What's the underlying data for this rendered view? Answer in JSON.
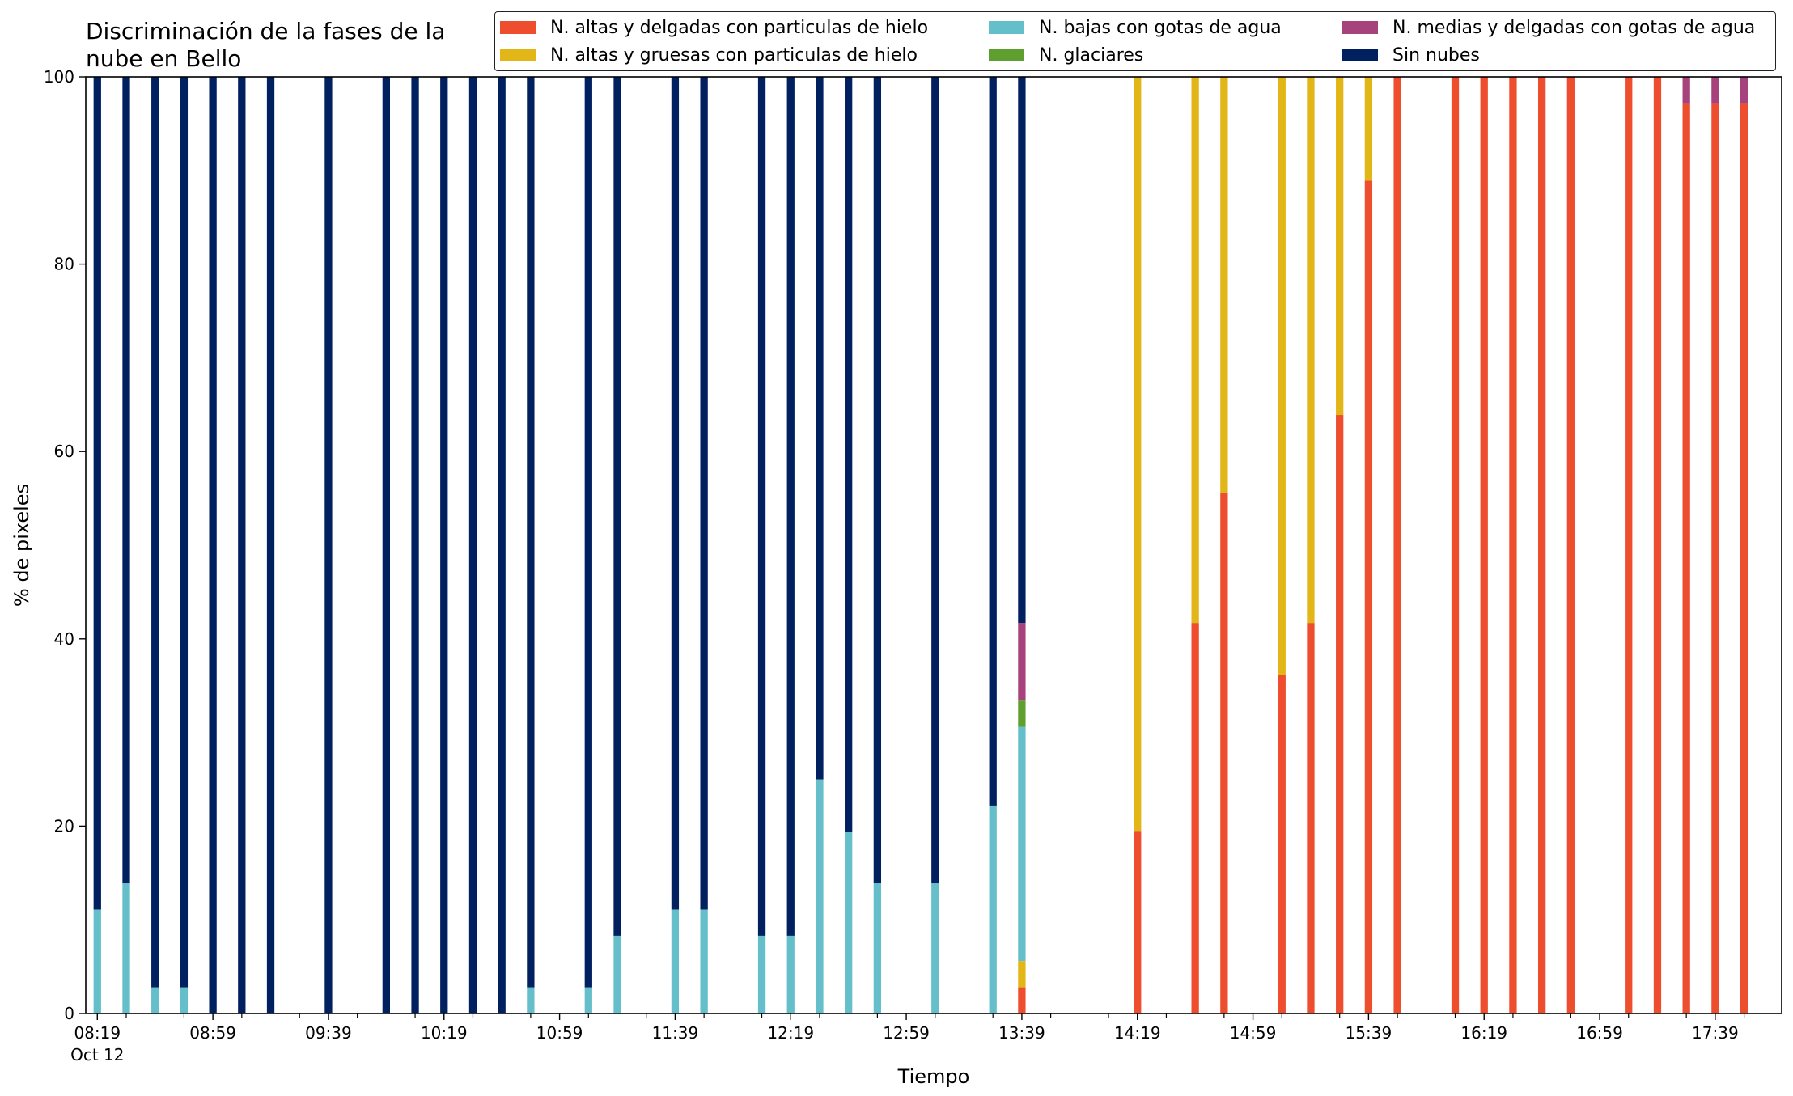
{
  "chart_data": {
    "type": "bar",
    "stacked": true,
    "title": "Discriminación de la fases de la\nnube en Bello",
    "xlabel": "Tiempo",
    "ylabel": "% de pixeles",
    "ylim": [
      0,
      100
    ],
    "yticks": [
      "0",
      "20",
      "40",
      "60",
      "80",
      "100"
    ],
    "xticks": [
      "08:19\nOct 12",
      "08:59",
      "09:39",
      "10:19",
      "10:59",
      "11:39",
      "12:19",
      "12:59",
      "13:39",
      "14:19",
      "14:59",
      "15:39",
      "16:19",
      "16:59",
      "17:39"
    ],
    "xtick_minutes": [
      499,
      539,
      579,
      619,
      659,
      699,
      739,
      779,
      819,
      859,
      899,
      939,
      979,
      1019,
      1059
    ],
    "xlim_minutes": [
      495,
      1082
    ],
    "bar_width_minutes": 5,
    "legend_position": "top-right",
    "grid": false,
    "colors": [
      "#ee4d2e",
      "#e2b616",
      "#65bfca",
      "#5f9f30",
      "#a6427c",
      "#002060"
    ],
    "categories": [
      "08:19",
      "08:29",
      "08:39",
      "08:49",
      "08:59",
      "09:09",
      "09:19",
      "09:29",
      "09:39",
      "09:49",
      "09:59",
      "10:09",
      "10:19",
      "10:29",
      "10:39",
      "10:49",
      "10:59",
      "11:09",
      "11:19",
      "11:29",
      "11:39",
      "11:49",
      "11:59",
      "12:09",
      "12:19",
      "12:29",
      "12:39",
      "12:49",
      "12:59",
      "13:09",
      "13:19",
      "13:29",
      "13:39",
      "13:49",
      "13:59",
      "14:09",
      "14:19",
      "14:29",
      "14:39",
      "14:49",
      "14:59",
      "15:09",
      "15:19",
      "15:29",
      "15:39",
      "15:49",
      "15:59",
      "16:09",
      "16:19",
      "16:29",
      "16:39",
      "16:49",
      "16:59",
      "17:09",
      "17:19",
      "17:29",
      "17:39",
      "17:49",
      "17:59"
    ],
    "series": [
      {
        "name": "N. altas y delgadas con particulas de hielo",
        "values": [
          0,
          0,
          0,
          0,
          0,
          0,
          0,
          0,
          0,
          0,
          0,
          0,
          0,
          0,
          0,
          0,
          0,
          0,
          0,
          0,
          0,
          0,
          0,
          0,
          0,
          0,
          0,
          0,
          0,
          0,
          0,
          0,
          2.8,
          0,
          0,
          0,
          19.5,
          0,
          41.7,
          55.6,
          0,
          36.1,
          41.7,
          63.9,
          88.9,
          100,
          0,
          100,
          100,
          100,
          100,
          100,
          0,
          100,
          100,
          97.2,
          97.2,
          97.2,
          0
        ]
      },
      {
        "name": "N. altas y gruesas con particulas de hielo",
        "values": [
          0,
          0,
          0,
          0,
          0,
          0,
          0,
          0,
          0,
          0,
          0,
          0,
          0,
          0,
          0,
          0,
          0,
          0,
          0,
          0,
          0,
          0,
          0,
          0,
          0,
          0,
          0,
          0,
          0,
          0,
          0,
          0,
          2.8,
          0,
          0,
          0,
          80.5,
          0,
          58.3,
          44.4,
          0,
          63.9,
          58.3,
          36.1,
          11.1,
          0,
          0,
          0,
          0,
          0,
          0,
          0,
          0,
          0,
          0,
          0,
          0,
          0,
          0
        ]
      },
      {
        "name": "N. bajas con gotas de agua",
        "values": [
          11.1,
          13.9,
          2.8,
          2.8,
          0,
          0,
          0,
          0,
          0,
          0,
          0,
          0,
          0,
          0,
          0,
          2.8,
          0,
          2.8,
          8.3,
          0,
          11.1,
          11.1,
          0,
          8.3,
          8.3,
          25,
          19.4,
          13.9,
          0,
          13.9,
          0,
          22.2,
          25,
          0,
          0,
          0,
          0,
          0,
          0,
          0,
          0,
          0,
          0,
          0,
          0,
          0,
          0,
          0,
          0,
          0,
          0,
          0,
          0,
          0,
          0,
          0,
          0,
          0,
          0
        ]
      },
      {
        "name": "N. glaciares",
        "values": [
          0,
          0,
          0,
          0,
          0,
          0,
          0,
          0,
          0,
          0,
          0,
          0,
          0,
          0,
          0,
          0,
          0,
          0,
          0,
          0,
          0,
          0,
          0,
          0,
          0,
          0,
          0,
          0,
          0,
          0,
          0,
          0,
          2.8,
          0,
          0,
          0,
          0,
          0,
          0,
          0,
          0,
          0,
          0,
          0,
          0,
          0,
          0,
          0,
          0,
          0,
          0,
          0,
          0,
          0,
          0,
          0,
          0,
          0,
          0
        ]
      },
      {
        "name": "N. medias y delgadas con gotas de agua",
        "values": [
          0,
          0,
          0,
          0,
          0,
          0,
          0,
          0,
          0,
          0,
          0,
          0,
          0,
          0,
          0,
          0,
          0,
          0,
          0,
          0,
          0,
          0,
          0,
          0,
          0,
          0,
          0,
          0,
          0,
          0,
          0,
          0,
          8.3,
          0,
          0,
          0,
          0,
          0,
          0,
          0,
          0,
          0,
          0,
          0,
          0,
          0,
          0,
          0,
          0,
          0,
          0,
          0,
          0,
          0,
          0,
          2.8,
          2.8,
          2.8,
          0
        ]
      },
      {
        "name": "Sin nubes",
        "values": [
          88.9,
          86.1,
          97.2,
          97.2,
          100,
          100,
          100,
          0,
          100,
          0,
          100,
          100,
          100,
          100,
          100,
          97.2,
          0,
          97.2,
          91.7,
          0,
          88.9,
          88.9,
          0,
          91.7,
          91.7,
          75,
          80.6,
          86.1,
          0,
          86.1,
          0,
          77.8,
          58.3,
          0,
          0,
          0,
          0,
          0,
          0,
          0,
          0,
          0,
          0,
          0,
          0,
          0,
          0,
          0,
          0,
          0,
          0,
          0,
          0,
          0,
          0,
          0,
          0,
          0,
          0
        ]
      }
    ]
  }
}
